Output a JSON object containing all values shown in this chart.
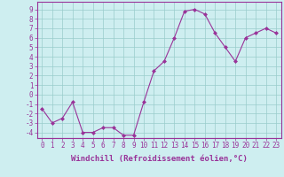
{
  "x": [
    0,
    1,
    2,
    3,
    4,
    5,
    6,
    7,
    8,
    9,
    10,
    11,
    12,
    13,
    14,
    15,
    16,
    17,
    18,
    19,
    20,
    21,
    22,
    23
  ],
  "y": [
    -1.5,
    -3.0,
    -2.5,
    -0.8,
    -4.0,
    -4.0,
    -3.5,
    -3.5,
    -4.3,
    -4.3,
    -0.8,
    2.5,
    3.5,
    6.0,
    8.8,
    9.0,
    8.5,
    6.5,
    5.0,
    3.5,
    6.0,
    6.5,
    7.0,
    6.5
  ],
  "line_color": "#993399",
  "marker": "D",
  "marker_size": 2,
  "bg_color": "#ceeef0",
  "grid_color": "#99cccc",
  "ylabel_ticks": [
    -4,
    -3,
    -2,
    -1,
    0,
    1,
    2,
    3,
    4,
    5,
    6,
    7,
    8,
    9
  ],
  "xlabel": "Windchill (Refroidissement éolien,°C)",
  "ylim": [
    -4.6,
    9.8
  ],
  "xlim": [
    -0.5,
    23.5
  ],
  "axis_color": "#993399",
  "tick_color": "#993399",
  "label_color": "#993399",
  "tick_fontsize": 5.5,
  "xlabel_fontsize": 6.5
}
